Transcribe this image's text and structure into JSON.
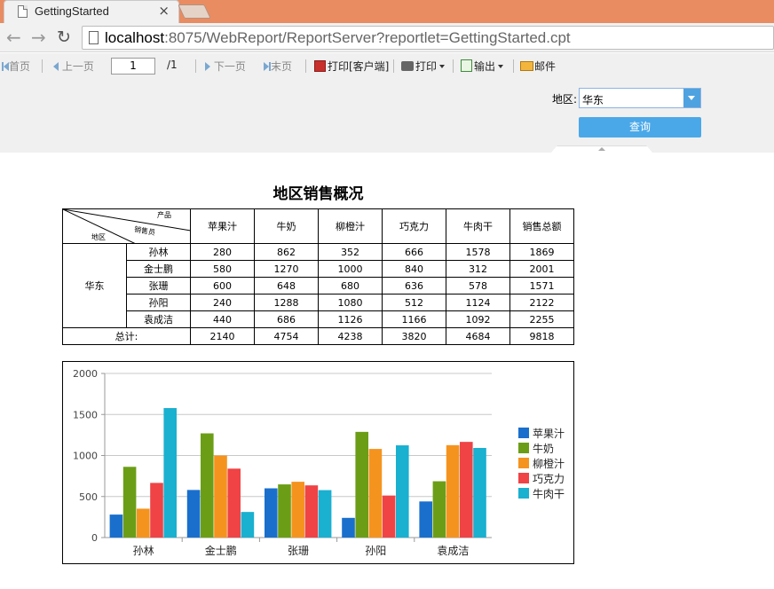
{
  "browser": {
    "tab_title": "GettingStarted",
    "tab_close": "×",
    "url_host": "localhost",
    "url_rest": ":8075/WebReport/ReportServer?reportlet=GettingStarted.cpt"
  },
  "report_toolbar": {
    "first": "首页",
    "prev": "上一页",
    "page_value": "1",
    "page_total": "/1",
    "next": "下一页",
    "last": "末页",
    "print_client": "打印[客户端]",
    "print": "打印",
    "export": "输出",
    "mail": "邮件"
  },
  "params": {
    "region_label": "地区:",
    "region_value": "华东",
    "query_button": "查询"
  },
  "report": {
    "title": "地区销售概况",
    "corner": {
      "product": "产品",
      "salesperson": "销售员",
      "region": "地区"
    },
    "columns": [
      "苹果汁",
      "牛奶",
      "柳橙汁",
      "巧克力",
      "牛肉干",
      "销售总额"
    ],
    "region": "华东",
    "rows": [
      {
        "name": "孙林",
        "values": [
          "280",
          "862",
          "352",
          "666",
          "1578",
          "1869"
        ]
      },
      {
        "name": "金士鹏",
        "values": [
          "580",
          "1270",
          "1000",
          "840",
          "312",
          "2001"
        ]
      },
      {
        "name": "张珊",
        "values": [
          "600",
          "648",
          "680",
          "636",
          "578",
          "1571"
        ]
      },
      {
        "name": "孙阳",
        "values": [
          "240",
          "1288",
          "1080",
          "512",
          "1124",
          "2122"
        ]
      },
      {
        "name": "袁成洁",
        "values": [
          "440",
          "686",
          "1126",
          "1166",
          "1092",
          "2255"
        ]
      }
    ],
    "total_label": "总计:",
    "totals": [
      "2140",
      "4754",
      "4238",
      "3820",
      "4684",
      "9818"
    ]
  },
  "chart_data": {
    "type": "bar",
    "categories": [
      "孙林",
      "金士鹏",
      "张珊",
      "孙阳",
      "袁成洁"
    ],
    "series": [
      {
        "name": "苹果汁",
        "color": "#1a6fcc",
        "values": [
          280,
          580,
          600,
          240,
          440
        ]
      },
      {
        "name": "牛奶",
        "color": "#6b9e16",
        "values": [
          862,
          1270,
          648,
          1288,
          686
        ]
      },
      {
        "name": "柳橙汁",
        "color": "#f5931f",
        "values": [
          352,
          1000,
          680,
          1080,
          1126
        ]
      },
      {
        "name": "巧克力",
        "color": "#ef4346",
        "values": [
          666,
          840,
          636,
          512,
          1166
        ]
      },
      {
        "name": "牛肉干",
        "color": "#1ab0d0",
        "values": [
          1578,
          312,
          578,
          1124,
          1092
        ]
      }
    ],
    "ylim": [
      0,
      2000
    ],
    "yticks": [
      "0",
      "500",
      "1000",
      "1500",
      "2000"
    ],
    "grid": true,
    "legend": "right"
  }
}
